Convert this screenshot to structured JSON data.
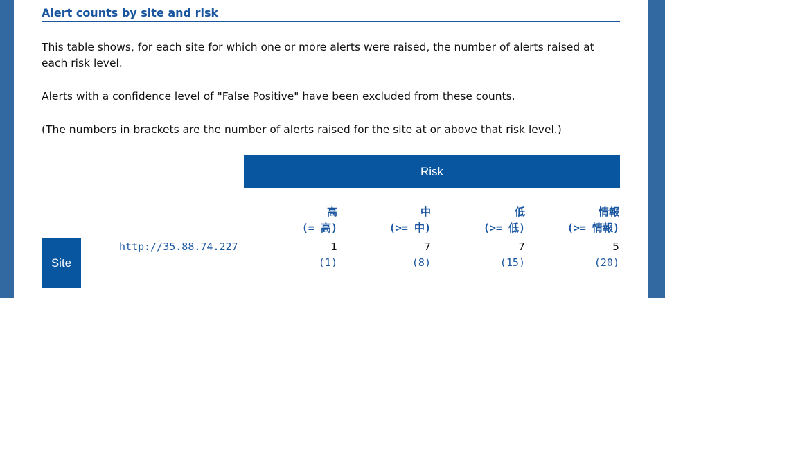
{
  "header": {
    "title": "Alert counts by site and risk"
  },
  "paragraphs": [
    "This table shows, for each site for which one or more alerts were raised, the number of alerts raised at each risk level.",
    "Alerts with a confidence level of \"False Positive\" have been excluded from these counts.",
    "(The numbers in brackets are the number of alerts raised for the site at or above that risk level.)"
  ],
  "table": {
    "group_header": "Risk",
    "row_header": "Site",
    "columns": [
      {
        "risk": "高",
        "range": "(= 高)"
      },
      {
        "risk": "中",
        "range": "(>= 中)"
      },
      {
        "risk": "低",
        "range": "(>= 低)"
      },
      {
        "risk": "情報",
        "range": "(>= 情報)"
      }
    ],
    "rows": [
      {
        "site": "http://35.88.74.227",
        "counts": [
          1,
          7,
          7,
          5
        ],
        "totals": [
          "(1)",
          "(8)",
          "(15)",
          "(20)"
        ]
      }
    ]
  }
}
